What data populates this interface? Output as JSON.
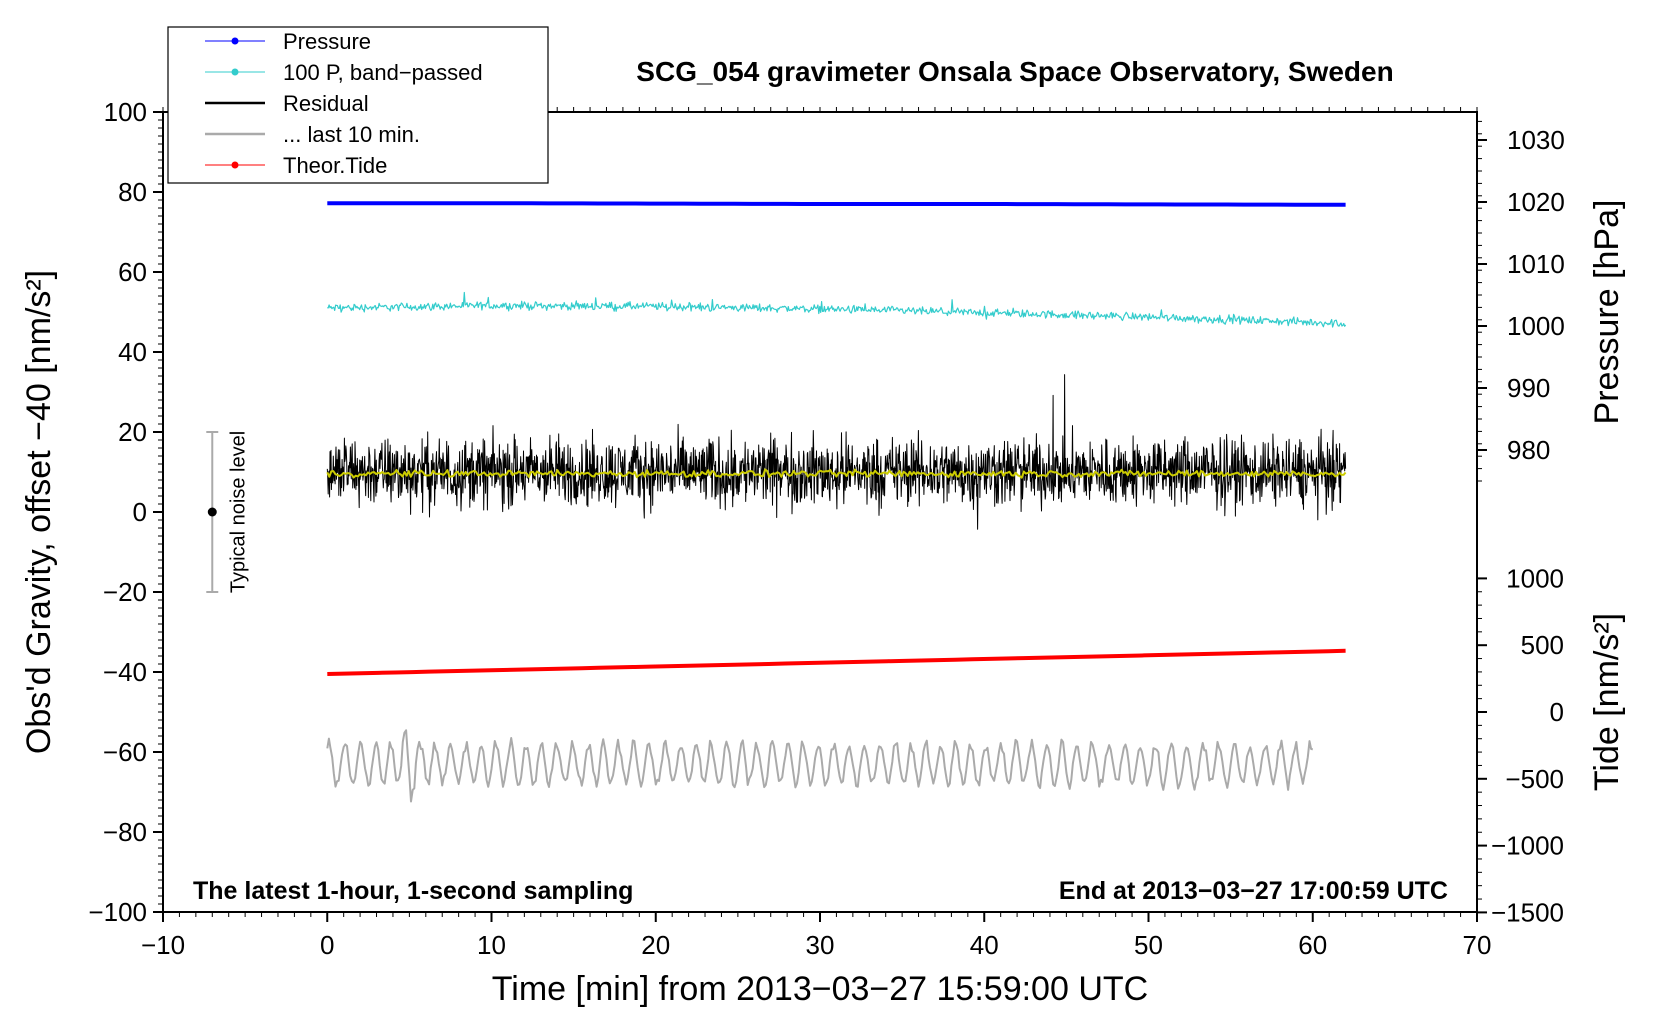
{
  "chart_data": {
    "type": "line",
    "title": "SCG_054 gravimeter Onsala Space Observatory, Sweden",
    "xlabel": "Time [min] from 2013−03−27 15:59:00 UTC",
    "ylabel_left": "Obs'd Gravity, offset −40 [nm/s²]",
    "ylabel_right_pressure": "Pressure [hPa]",
    "ylabel_right_tide": "Tide [nm/s²]",
    "xlim": [
      -10,
      70
    ],
    "ylim": [
      -100,
      100
    ],
    "x_ticks": [
      -10,
      0,
      10,
      20,
      30,
      40,
      50,
      60,
      70
    ],
    "x_tick_labels": [
      "−10",
      "0",
      "10",
      "20",
      "30",
      "40",
      "50",
      "60",
      "70"
    ],
    "y_ticks": [
      -100,
      -80,
      -60,
      -40,
      -20,
      0,
      20,
      40,
      60,
      80,
      100
    ],
    "y_tick_labels": [
      "−100",
      "−80",
      "−60",
      "−40",
      "−20",
      "0",
      "20",
      "40",
      "60",
      "80",
      "100"
    ],
    "pressure_axis": {
      "ticks": [
        980,
        990,
        1000,
        1010,
        1020,
        1030
      ],
      "tick_labels": [
        "980",
        "990",
        "1000",
        "1010",
        "1020",
        "1030"
      ],
      "left_equiv_at_1000": 46.5,
      "left_units_per_hpa": 1.55
    },
    "tide_axis": {
      "ticks": [
        -1500,
        -1000,
        -500,
        0,
        500,
        1000
      ],
      "tick_labels": [
        "−1500",
        "−1000",
        "−500",
        "0",
        "500",
        "1000"
      ],
      "left_equiv_at_0": -50,
      "left_units_per_500": 16.7
    },
    "legend": [
      {
        "label": "Pressure",
        "color": "#0000ff",
        "marker": true
      },
      {
        "label": "100 P, band−passed",
        "color": "#33cccc",
        "marker": true
      },
      {
        "label": "Residual",
        "color": "#000000",
        "marker": false
      },
      {
        "label": "... last 10 min.",
        "color": "#aaaaaa",
        "marker": false
      },
      {
        "label": "Theor.Tide",
        "color": "#ff0000",
        "marker": true
      }
    ],
    "series": [
      {
        "name": "Pressure",
        "color": "#0000ff",
        "x": [
          0,
          10,
          20,
          30,
          40,
          50,
          62
        ],
        "y": [
          77.2,
          77.2,
          77.1,
          77.0,
          77.0,
          76.9,
          76.8
        ]
      },
      {
        "name": "100 P, band−passed",
        "color": "#33cccc",
        "x": [
          0,
          10,
          20,
          30,
          40,
          50,
          62
        ],
        "y": [
          51.0,
          51.6,
          51.4,
          50.8,
          49.8,
          48.8,
          47.1
        ],
        "noise": 0.7
      },
      {
        "name": "Residual",
        "color": "#000000",
        "x": [
          0,
          62
        ],
        "y": [
          10,
          10
        ],
        "noise": 6
      },
      {
        "name": "Residual smoothed",
        "color": "#cccc00",
        "x": [
          0,
          62
        ],
        "y": [
          9.6,
          9.6
        ]
      },
      {
        "name": "Theor.Tide",
        "color": "#ff0000",
        "x": [
          0,
          62
        ],
        "y": [
          -40.5,
          -34.7
        ]
      },
      {
        "name": "... last 10 min.",
        "color": "#aaaaaa",
        "x": [
          0,
          60
        ],
        "y": [
          -63,
          -63
        ],
        "noise": 5,
        "x_display": [
          0,
          60
        ]
      }
    ],
    "noise_bar": {
      "x": -7,
      "y_low": -20,
      "y_high": 20,
      "y_mid": 0,
      "label": "Typical noise level"
    },
    "annotations": {
      "left": "The latest 1-hour, 1-second sampling",
      "right": "End at 2013−03−27 17:00:59 UTC"
    }
  }
}
